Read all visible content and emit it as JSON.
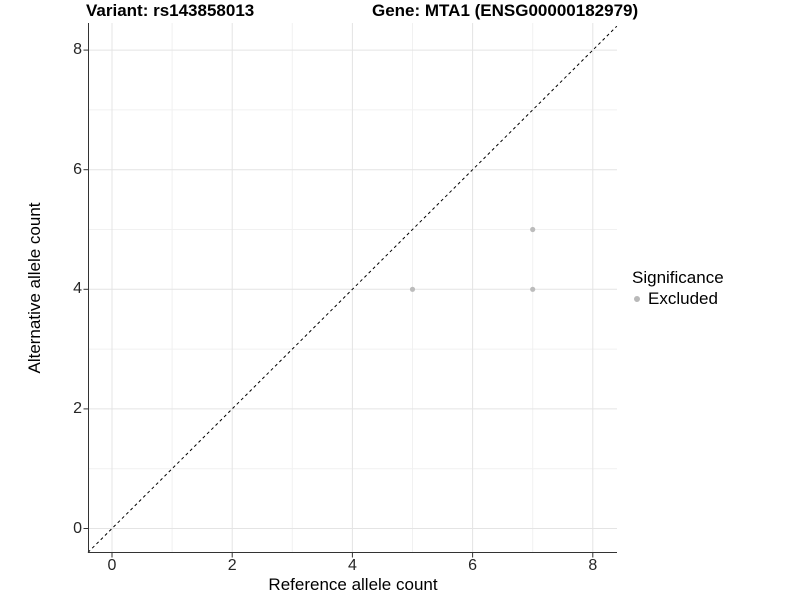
{
  "chart_data": {
    "type": "scatter",
    "title_left": "Variant: rs143858013",
    "title_right": "Gene: MTA1 (ENSG00000182979)",
    "xlabel": "Reference allele count",
    "ylabel": "Alternative allele count",
    "xlim": [
      -0.4,
      8.4
    ],
    "ylim": [
      -0.4,
      8.4
    ],
    "x_ticks": [
      0,
      2,
      4,
      6,
      8
    ],
    "y_ticks": [
      0,
      2,
      4,
      6,
      8
    ],
    "x_tick_labels": [
      "0",
      "2",
      "4",
      "6",
      "8"
    ],
    "y_tick_labels": [
      "0",
      "2",
      "4",
      "6",
      "8"
    ],
    "minor_ticks_x": [
      1,
      3,
      5,
      7
    ],
    "minor_ticks_y": [
      1,
      3,
      5,
      7
    ],
    "grid": true,
    "series": [
      {
        "name": "Excluded",
        "color": "#bcbcbc",
        "points": [
          [
            5,
            4
          ],
          [
            7,
            4
          ],
          [
            7,
            5
          ]
        ]
      }
    ],
    "reference_line": {
      "type": "identity y=x",
      "style": "dashed",
      "color": "#000000"
    },
    "legend": {
      "title": "Significance",
      "position": "right",
      "items": [
        {
          "label": "Excluded",
          "color": "#b9b9b9"
        }
      ]
    }
  },
  "colors": {
    "background": "#ffffff",
    "grid_major": "#e4e4e4",
    "grid_minor": "#f1f1f1",
    "axis_line": "#333333",
    "tick_text": "#262626",
    "point": "#bcbcbc"
  }
}
